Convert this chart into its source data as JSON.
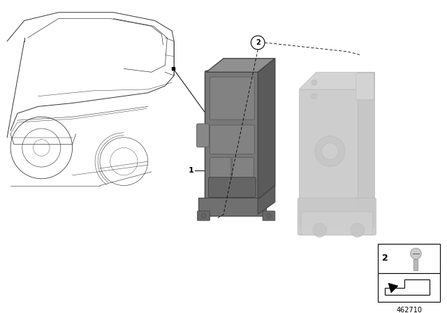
{
  "background_color": "#ffffff",
  "figure_size": [
    6.4,
    4.48
  ],
  "dpi": 100,
  "line_color": "#000000",
  "part_number_text": "462710",
  "module_dark": "#6a6a6a",
  "module_mid": "#888888",
  "module_light": "#aaaaaa",
  "bracket_fill": "#d8d8d8",
  "bracket_edge": "#bbbbbb",
  "car_lw": 0.7,
  "car_color": "#333333"
}
